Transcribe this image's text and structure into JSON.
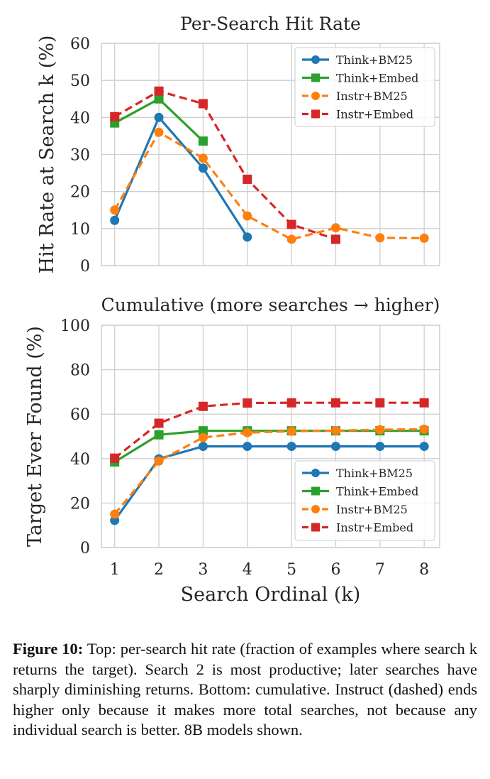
{
  "chart_data": [
    {
      "type": "line",
      "title": "Per-Search Hit Rate",
      "xlabel": "",
      "ylabel": "Hit Rate at Search k (%)",
      "x_ticks": [
        "1",
        "2",
        "3",
        "4",
        "5",
        "6",
        "7",
        "8"
      ],
      "y_ticks": [
        "0",
        "10",
        "20",
        "30",
        "40",
        "50",
        "60"
      ],
      "xlim": [
        0.7,
        8.35
      ],
      "ylim": [
        0,
        60
      ],
      "grid": true,
      "legend_position": "top-right",
      "series": [
        {
          "name": "Think+BM25",
          "color": "#1f77b4",
          "marker": "circle",
          "dashed": false,
          "x": [
            1,
            2,
            3,
            4
          ],
          "values": [
            12.2,
            40,
            26.3,
            7.7
          ]
        },
        {
          "name": "Think+Embed",
          "color": "#2ca02c",
          "marker": "square",
          "dashed": false,
          "x": [
            1,
            2,
            3
          ],
          "values": [
            38.5,
            45,
            33.6
          ]
        },
        {
          "name": "Instr+BM25",
          "color": "#ff7f0e",
          "marker": "circle",
          "dashed": true,
          "x": [
            1,
            2,
            3,
            4,
            5,
            6,
            7,
            8
          ],
          "values": [
            15,
            36,
            29,
            13.4,
            7.1,
            10.2,
            7.5,
            7.4
          ]
        },
        {
          "name": "Instr+Embed",
          "color": "#d62728",
          "marker": "square",
          "dashed": true,
          "x": [
            1,
            2,
            3,
            4,
            5,
            6
          ],
          "values": [
            40.2,
            47.1,
            43.7,
            23.3,
            11.1,
            7.1
          ]
        }
      ]
    },
    {
      "type": "line",
      "title": "Cumulative (more searches → higher)",
      "xlabel": "Search Ordinal (k)",
      "ylabel": "Target Ever Found (%)",
      "x_ticks": [
        "1",
        "2",
        "3",
        "4",
        "5",
        "6",
        "7",
        "8"
      ],
      "y_ticks": [
        "0",
        "20",
        "40",
        "60",
        "80",
        "100"
      ],
      "xlim": [
        0.7,
        8.35
      ],
      "ylim": [
        0,
        100
      ],
      "grid": true,
      "legend_position": "bottom-right",
      "series": [
        {
          "name": "Think+BM25",
          "color": "#1f77b4",
          "marker": "circle",
          "dashed": false,
          "x": [
            1,
            2,
            3,
            4,
            5,
            6,
            7,
            8
          ],
          "values": [
            12.2,
            39.9,
            45.5,
            45.5,
            45.5,
            45.5,
            45.5,
            45.5
          ]
        },
        {
          "name": "Think+Embed",
          "color": "#2ca02c",
          "marker": "square",
          "dashed": false,
          "x": [
            1,
            2,
            3,
            4,
            5,
            6,
            7,
            8
          ],
          "values": [
            38.5,
            50.7,
            52.5,
            52.5,
            52.5,
            52.5,
            52.5,
            52.5
          ]
        },
        {
          "name": "Instr+BM25",
          "color": "#ff7f0e",
          "marker": "circle",
          "dashed": true,
          "x": [
            1,
            2,
            3,
            4,
            5,
            6,
            7,
            8
          ],
          "values": [
            15,
            38.9,
            49.5,
            51.7,
            52.3,
            52.6,
            53,
            53.2
          ]
        },
        {
          "name": "Instr+Embed",
          "color": "#d62728",
          "marker": "square",
          "dashed": true,
          "x": [
            1,
            2,
            3,
            4,
            5,
            6,
            7,
            8
          ],
          "values": [
            40.2,
            55.9,
            63.5,
            65,
            65.1,
            65.1,
            65.1,
            65.1
          ]
        }
      ]
    }
  ],
  "caption": {
    "label": "Figure 10:",
    "text": "Top: per-search hit rate (fraction of examples where search k returns the target). Search 2 is most productive; later searches have sharply diminishing returns. Bottom: cumulative. Instruct (dashed) ends higher only because it makes more total searches, not because any individual search is better. 8B models shown."
  }
}
